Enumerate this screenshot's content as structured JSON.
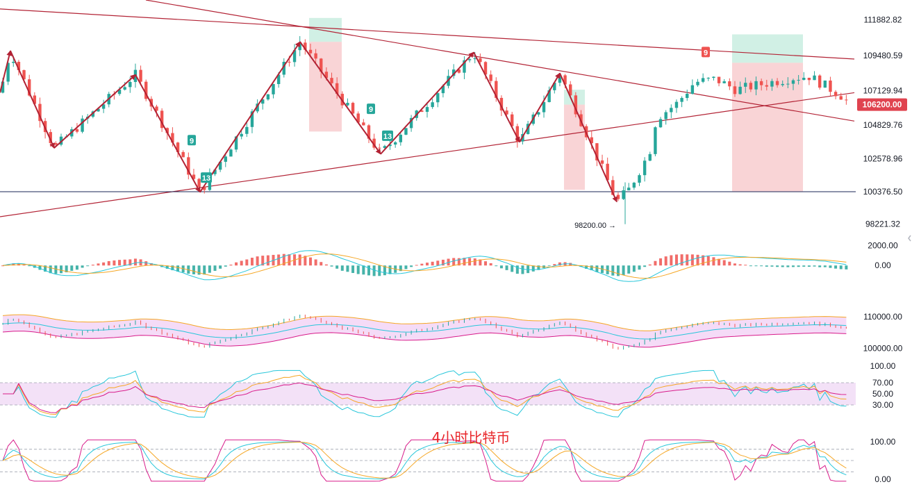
{
  "chart_data": {
    "type": "candlestick",
    "caption": "4小时比特币",
    "colors": {
      "up": "#26a69a",
      "down": "#ef5350",
      "trend_line": "#b22234",
      "arrow": "#b22234",
      "support_line": "#1a2456",
      "profit_zone": "#b2e6d4",
      "loss_zone": "#f7c5c8",
      "price_tag": "#e0434f",
      "macd_fast": "#26c6da",
      "macd_slow": "#f5a623",
      "bb_band": "#f3d2f5",
      "bb_upper": "#f5a623",
      "bb_lower": "#d81b8a",
      "bb_mid": "#26c6da",
      "rsi_band": "#f1dcf6",
      "kdj_k": "#26c6da",
      "kdj_d": "#f5a623",
      "kdj_j": "#d81b8a"
    },
    "price_axis": {
      "range": [
        97400,
        113200
      ],
      "ticks": [
        "111882.82",
        "109480.59",
        "107129.94",
        "104829.76",
        "102578.96",
        "100376.50",
        "98221.32"
      ],
      "current_price": "106200.00",
      "support_level": 100376.5
    },
    "low_marker": {
      "label": "98200.00",
      "value": 98200
    },
    "pivots": [
      [
        0,
        107000
      ],
      [
        15,
        109800
      ],
      [
        78,
        103300
      ],
      [
        195,
        108200
      ],
      [
        288,
        100350
      ],
      [
        432,
        110400
      ],
      [
        548,
        102900
      ],
      [
        682,
        109700
      ],
      [
        748,
        103700
      ],
      [
        806,
        108300
      ],
      [
        888,
        99700
      ]
    ],
    "candle_count": 160,
    "seq_badges": [
      {
        "label": "9",
        "type": "up",
        "candle": 276,
        "value": 103800
      },
      {
        "label": "13",
        "type": "up",
        "candle": 297,
        "value": 101300
      },
      {
        "label": "9",
        "type": "up",
        "candle": 534,
        "value": 105900
      },
      {
        "label": "13",
        "type": "up",
        "candle": 558,
        "value": 104100
      },
      {
        "label": "9",
        "type": "down",
        "candle": 1016,
        "value": 109700
      }
    ],
    "trend_lines": [
      {
        "from": [
          0,
          112600
        ],
        "to": [
          1230,
          109250
        ]
      },
      {
        "from": [
          210,
          113200
        ],
        "to": [
          1230,
          105100
        ]
      },
      {
        "from": [
          0,
          98700
        ],
        "to": [
          1230,
          107000
        ]
      }
    ],
    "position_zones": [
      {
        "x": [
          445,
          492
        ],
        "entry": 110400,
        "target": 112000,
        "stop": 104400
      },
      {
        "x": [
          812,
          842
        ],
        "entry": 106200,
        "target": 107200,
        "stop": 100500
      },
      {
        "x": [
          1054,
          1156
        ],
        "entry": 109000,
        "target": 110900,
        "stop": 100400
      }
    ],
    "macd": {
      "ticks": [
        "2000.00",
        "0.00"
      ],
      "range": [
        -3200,
        2600
      ]
    },
    "boll": {
      "ticks": [
        "110000.00",
        "100000.00"
      ],
      "range": [
        97000,
        113500
      ]
    },
    "rsi": {
      "ticks": [
        "100.00",
        "70.00",
        "50.00",
        "30.00"
      ],
      "range": [
        0,
        100
      ],
      "band": [
        30,
        70
      ]
    },
    "kdj": {
      "ticks": [
        "100.00",
        "0.00"
      ],
      "range": [
        0,
        100
      ],
      "levels": [
        80,
        50,
        20
      ]
    }
  }
}
